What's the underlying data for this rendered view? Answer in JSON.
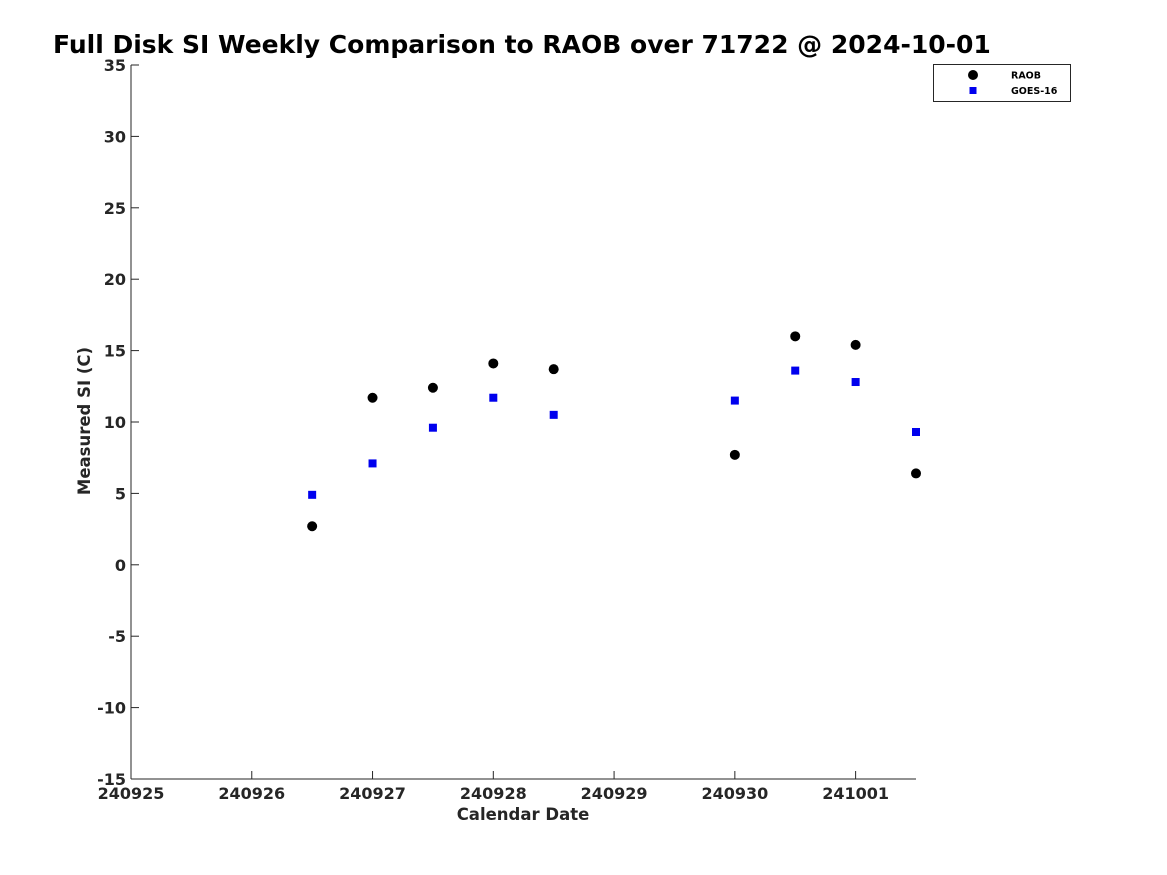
{
  "chart_data": {
    "type": "scatter",
    "title": "Full Disk SI Weekly Comparison to RAOB over 71722 @ 2024-10-01",
    "xlabel": "Calendar Date",
    "ylabel": "Measured SI (C)",
    "xlim": [
      0,
      6.5
    ],
    "ylim": [
      -15,
      35
    ],
    "x_ticks": [
      0,
      1,
      2,
      3,
      4,
      5,
      6
    ],
    "x_tick_labels": [
      "240925",
      "240926",
      "240927",
      "240928",
      "240929",
      "240930",
      "241001"
    ],
    "y_ticks": [
      -15,
      -10,
      -5,
      0,
      5,
      10,
      15,
      20,
      25,
      30,
      35
    ],
    "y_tick_labels": [
      "-15",
      "-10",
      "-5",
      "0",
      "5",
      "10",
      "15",
      "20",
      "25",
      "30",
      "35"
    ],
    "grid": false,
    "legend_position": "top-right",
    "series": [
      {
        "name": "RAOB",
        "marker": "circle",
        "color": "#000000",
        "x": [
          1.5,
          2.0,
          2.5,
          3.0,
          3.5,
          5.0,
          5.5,
          6.0,
          6.5
        ],
        "y": [
          2.7,
          11.7,
          12.4,
          14.1,
          13.7,
          7.7,
          16.0,
          15.4,
          6.4
        ]
      },
      {
        "name": "GOES-16",
        "marker": "square",
        "color": "#0000ee",
        "x": [
          1.5,
          2.0,
          2.5,
          3.0,
          3.5,
          5.0,
          5.5,
          6.0,
          6.5
        ],
        "y": [
          4.9,
          7.1,
          9.6,
          11.7,
          10.5,
          11.5,
          13.6,
          12.8,
          9.3
        ]
      }
    ]
  }
}
